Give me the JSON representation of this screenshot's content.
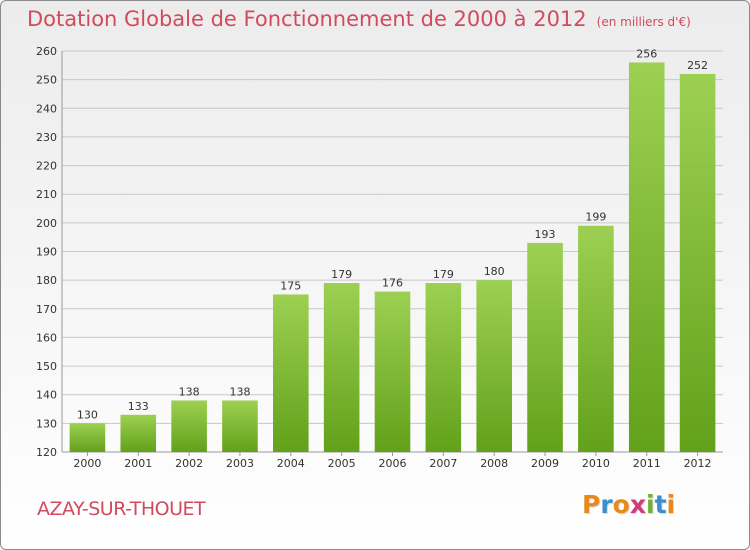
{
  "header": {
    "title": "Dotation Globale de Fonctionnement de 2000 à 2012",
    "subtitle": "(en milliers d'€)"
  },
  "footer": {
    "commune": "AZAY-SUR-THOUET",
    "logo_text": "Proxiti"
  },
  "colors": {
    "title": "#d24a5e",
    "bar_top": "#9dd052",
    "bar_bottom": "#62a11a",
    "grid": "#c8c8c8"
  },
  "chart_data": {
    "type": "bar",
    "title": "Dotation Globale de Fonctionnement de 2000 à 2012",
    "subtitle": "(en milliers d'€)",
    "categories": [
      "2000",
      "2001",
      "2002",
      "2003",
      "2004",
      "2005",
      "2006",
      "2007",
      "2008",
      "2009",
      "2010",
      "2011",
      "2012"
    ],
    "values": [
      130,
      133,
      138,
      138,
      175,
      179,
      176,
      179,
      180,
      193,
      199,
      256,
      252
    ],
    "ylim": [
      120,
      260
    ],
    "yticks": [
      120,
      130,
      140,
      150,
      160,
      170,
      180,
      190,
      200,
      210,
      220,
      230,
      240,
      250,
      260
    ],
    "grid": true,
    "data_labels": true
  }
}
